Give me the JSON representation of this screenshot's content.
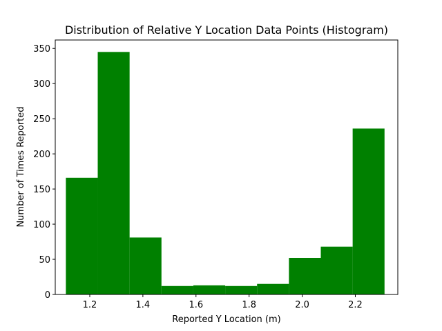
{
  "chart_data": {
    "type": "bar",
    "title": "Distribution of Relative Y Location Data Points (Histogram)",
    "xlabel": "Reported Y Location (m)",
    "ylabel": "Number of Times Reported",
    "xlim": [
      1.07,
      2.36
    ],
    "ylim": [
      0,
      362
    ],
    "xticks": [
      1.2,
      1.4,
      1.6,
      1.8,
      2.0,
      2.2
    ],
    "xtick_labels": [
      "1.2",
      "1.4",
      "1.6",
      "1.8",
      "2.0",
      "2.2"
    ],
    "yticks": [
      0,
      50,
      100,
      150,
      200,
      250,
      300,
      350
    ],
    "ytick_labels": [
      "0",
      "50",
      "100",
      "150",
      "200",
      "250",
      "300",
      "350"
    ],
    "bins": [
      {
        "x0": 1.11,
        "x1": 1.23,
        "value": 166
      },
      {
        "x0": 1.23,
        "x1": 1.35,
        "value": 345
      },
      {
        "x0": 1.35,
        "x1": 1.47,
        "value": 81
      },
      {
        "x0": 1.47,
        "x1": 1.59,
        "value": 12
      },
      {
        "x0": 1.59,
        "x1": 1.71,
        "value": 13
      },
      {
        "x0": 1.71,
        "x1": 1.83,
        "value": 12
      },
      {
        "x0": 1.83,
        "x1": 1.95,
        "value": 15
      },
      {
        "x0": 1.95,
        "x1": 2.07,
        "value": 52
      },
      {
        "x0": 2.07,
        "x1": 2.19,
        "value": 68
      },
      {
        "x0": 2.19,
        "x1": 2.31,
        "value": 236
      }
    ],
    "bar_color": "#008000",
    "grid": false,
    "legend": false
  }
}
